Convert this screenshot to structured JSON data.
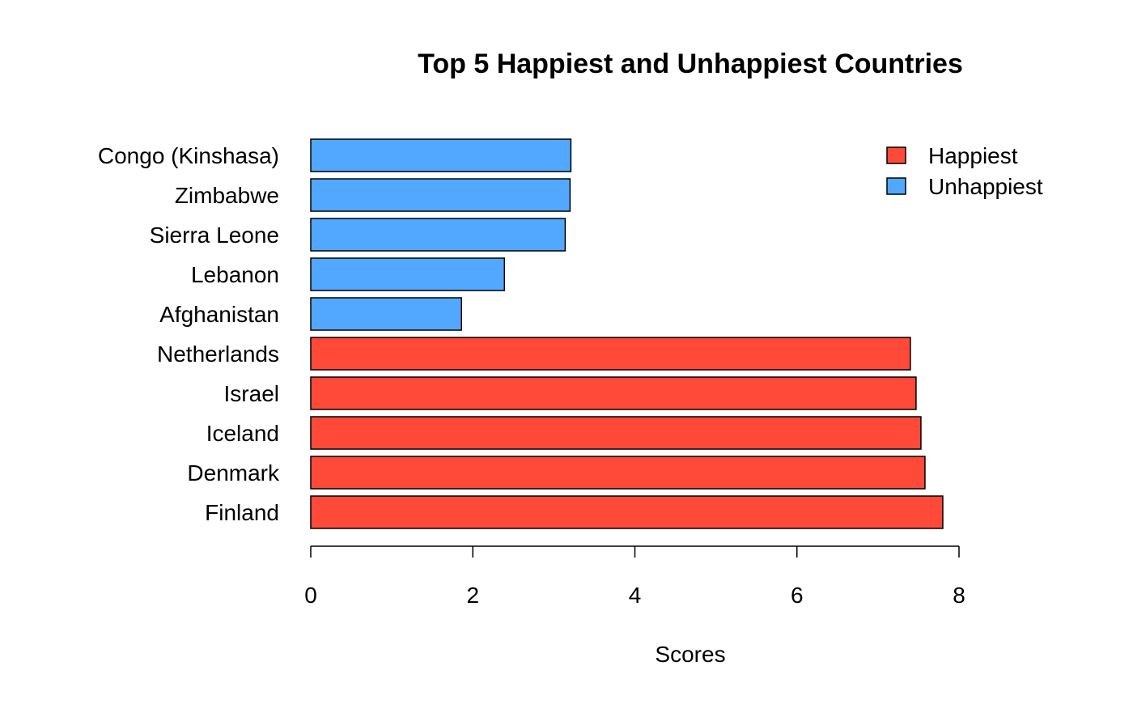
{
  "chart_data": {
    "type": "bar",
    "orientation": "horizontal",
    "title": "Top 5 Happiest and Unhappiest Countries",
    "xlabel": "Scores",
    "ylabel": "",
    "xlim": [
      0,
      8
    ],
    "x_ticks": [
      0,
      2,
      4,
      6,
      8
    ],
    "grid": false,
    "legend_position": "top-right",
    "legend": [
      {
        "label": "Happiest",
        "color": "#FF4A3A"
      },
      {
        "label": "Unhappiest",
        "color": "#52A8FF"
      }
    ],
    "categories": [
      "Finland",
      "Denmark",
      "Iceland",
      "Israel",
      "Netherlands",
      "Afghanistan",
      "Lebanon",
      "Sierra Leone",
      "Zimbabwe",
      "Congo (Kinshasa)"
    ],
    "values": [
      7.8,
      7.58,
      7.53,
      7.47,
      7.4,
      1.86,
      2.39,
      3.14,
      3.2,
      3.21
    ],
    "groups": [
      "Happiest",
      "Happiest",
      "Happiest",
      "Happiest",
      "Happiest",
      "Unhappiest",
      "Unhappiest",
      "Unhappiest",
      "Unhappiest",
      "Unhappiest"
    ]
  }
}
